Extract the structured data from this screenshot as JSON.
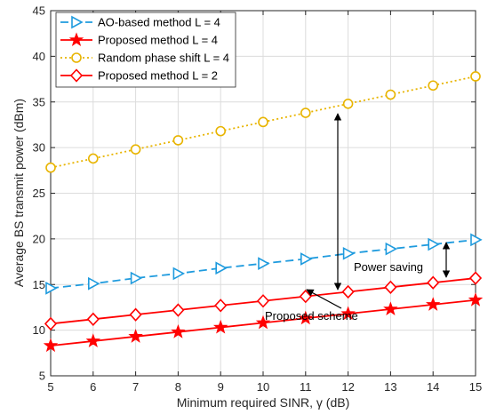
{
  "chart_data": {
    "type": "line",
    "xlabel": "Minimum required SINR, γ (dB)",
    "ylabel": "Average BS transmit power (dBm)",
    "xlim": [
      5,
      15
    ],
    "ylim": [
      5,
      45
    ],
    "xticks": [
      "5",
      "6",
      "7",
      "8",
      "9",
      "10",
      "11",
      "12",
      "13",
      "14",
      "15"
    ],
    "yticks": [
      "5",
      "10",
      "15",
      "20",
      "25",
      "30",
      "35",
      "40",
      "45"
    ],
    "grid": true,
    "legend_position": "top-left",
    "x": [
      5,
      6,
      7,
      8,
      9,
      10,
      11,
      12,
      13,
      14,
      15
    ],
    "series": [
      {
        "name": "AO-based method L = 4",
        "color": "#1f9bde",
        "dash": "dashed",
        "marker": "triangle-right",
        "values": [
          14.6,
          15.1,
          15.7,
          16.2,
          16.8,
          17.3,
          17.8,
          18.4,
          18.9,
          19.4,
          19.9
        ]
      },
      {
        "name": "Proposed method L = 4",
        "color": "#ff0000",
        "dash": "solid",
        "marker": "star",
        "values": [
          8.3,
          8.8,
          9.3,
          9.8,
          10.3,
          10.8,
          11.3,
          11.8,
          12.3,
          12.8,
          13.3
        ]
      },
      {
        "name": "Random phase shift L = 4",
        "color": "#e8b400",
        "dash": "dotted",
        "marker": "circle",
        "values": [
          27.8,
          28.8,
          29.8,
          30.8,
          31.8,
          32.8,
          33.8,
          34.8,
          35.8,
          36.8,
          37.8
        ]
      },
      {
        "name": "Proposed method L = 2",
        "color": "#ff0000",
        "dash": "solid",
        "marker": "diamond",
        "values": [
          10.7,
          11.2,
          11.7,
          12.2,
          12.7,
          13.2,
          13.7,
          14.2,
          14.7,
          15.2,
          15.7
        ]
      }
    ],
    "annotations": [
      {
        "id": "power_saving",
        "text": "Power saving"
      },
      {
        "id": "proposed_scheme",
        "text": "Proposed scheme"
      }
    ]
  }
}
